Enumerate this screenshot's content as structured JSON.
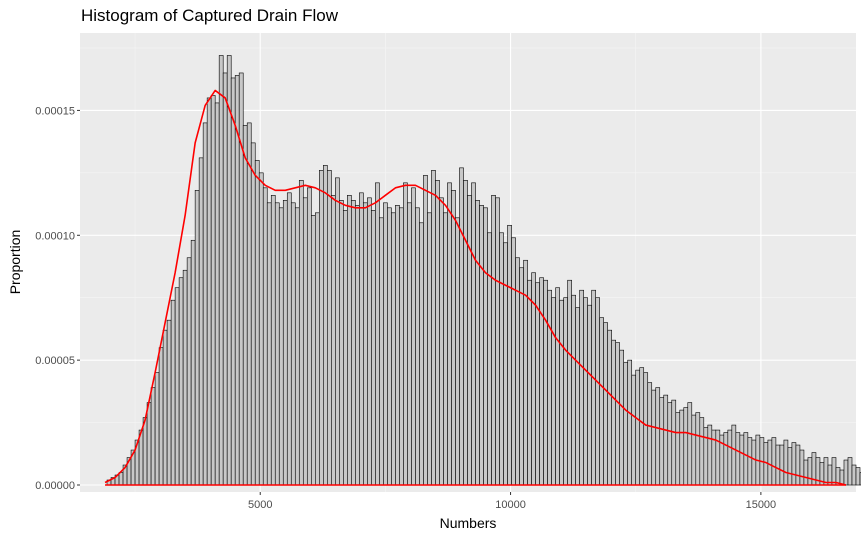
{
  "chart_data": {
    "type": "bar",
    "title": "Histogram of Captured Drain Flow",
    "xlabel": "Numbers",
    "ylabel": "Proportion",
    "xlim": [
      1400,
      16900
    ],
    "ylim": [
      -2.8e-06,
      0.000181
    ],
    "x_ticks": [
      5000,
      10000,
      15000
    ],
    "x_tick_labels": [
      "5000",
      "10000",
      "15000"
    ],
    "y_ticks": [
      0,
      5e-05,
      0.0001,
      0.00015
    ],
    "y_tick_labels": [
      "0.00000",
      "0.00005",
      "0.00010",
      "0.00015"
    ],
    "grid": true,
    "background": "#ebebeb",
    "bar_fill": "#c8c8c8",
    "bar_outline": "#000000",
    "density_color": "#ff0000",
    "bins": {
      "start": 1940,
      "width": 80,
      "values": [
        2e-06,
        3e-06,
        4e-06,
        5e-06,
        8e-06,
        1.1e-05,
        1.4e-05,
        1.8e-05,
        2.2e-05,
        2.7e-05,
        3.3e-05,
        3.9e-05,
        4.5e-05,
        5.5e-05,
        6.2e-05,
        6.6e-05,
        7.4e-05,
        7.9e-05,
        8.3e-05,
        8.6e-05,
        9.1e-05,
        9.8e-05,
        0.000118,
        0.000131,
        0.000145,
        0.000155,
        0.000156,
        0.000153,
        0.000172,
        0.000165,
        0.000172,
        0.000163,
        0.000164,
        0.000165,
        0.000144,
        0.000145,
        0.000137,
        0.00013,
        0.000125,
        0.000119,
        0.000113,
        0.000116,
        0.000113,
        0.000111,
        0.000114,
        0.000117,
        0.000113,
        0.000111,
        0.000122,
        0.000115,
        0.000119,
        0.000108,
        0.000109,
        0.000126,
        0.000128,
        0.000126,
        0.000116,
        0.000123,
        0.000114,
        0.00011,
        0.000116,
        0.000114,
        0.000112,
        0.000117,
        0.000113,
        0.000115,
        0.00011,
        0.000121,
        0.000107,
        0.000113,
        0.000111,
        0.000109,
        0.000112,
        0.000111,
        0.000121,
        0.000113,
        0.000119,
        0.000111,
        0.000105,
        0.000124,
        0.000109,
        0.000126,
        0.000122,
        0.000115,
        0.000109,
        0.000121,
        0.000118,
        0.000107,
        0.000127,
        0.000122,
        0.000116,
        0.000121,
        0.000114,
        0.000112,
        0.000111,
        0.000101,
        0.000116,
        0.000115,
        0.000101,
        9.7e-05,
        0.000104,
        9.9e-05,
        9.1e-05,
        8.7e-05,
        9e-05,
        8.2e-05,
        8.5e-05,
        8.1e-05,
        8.3e-05,
        8.2e-05,
        7.8e-05,
        7.5e-05,
        7.9e-05,
        7.4e-05,
        7.5e-05,
        8.2e-05,
        7.6e-05,
        7.1e-05,
        7.8e-05,
        7.5e-05,
        7.2e-05,
        7.8e-05,
        7.5e-05,
        6.7e-05,
        6.5e-05,
        6.2e-05,
        5.8e-05,
        5.7e-05,
        5.4e-05,
        4.9e-05,
        5e-05,
        4.4e-05,
        4.6e-05,
        4.7e-05,
        4.5e-05,
        4.1e-05,
        3.8e-05,
        3.9e-05,
        3.5e-05,
        3.6e-05,
        3.3e-05,
        3.4e-05,
        2.9e-05,
        3e-05,
        3.1e-05,
        3.3e-05,
        2.8e-05,
        2.9e-05,
        2.7e-05,
        2.3e-05,
        2.4e-05,
        2.2e-05,
        2.2e-05,
        2e-05,
        2.1e-05,
        2.2e-05,
        2.4e-05,
        2.1e-05,
        2e-05,
        2.1e-05,
        1.9e-05,
        1.8e-05,
        2e-05,
        1.9e-05,
        1.7e-05,
        1.8e-05,
        1.9e-05,
        1.6e-05,
        1.6e-05,
        1.8e-05,
        1.5e-05,
        1.7e-05,
        1.6e-05,
        1.4e-05,
        1e-05,
        1.1e-05,
        1.3e-05,
        1.1e-05,
        9e-06,
        1.1e-05,
        8e-06,
        1.1e-05,
        7e-06,
        6e-06,
        1e-05,
        1.1e-05,
        8e-06,
        7e-06,
        5e-06,
        4e-06,
        5e-06,
        3e-06,
        3e-06,
        2e-06,
        2e-06,
        1e-06,
        1e-06,
        1e-06
      ]
    },
    "density": {
      "x": [
        1900,
        2100,
        2300,
        2500,
        2700,
        2900,
        3100,
        3300,
        3500,
        3700,
        3900,
        4100,
        4300,
        4500,
        4700,
        4900,
        5100,
        5300,
        5500,
        5700,
        5900,
        6100,
        6300,
        6500,
        6700,
        6900,
        7100,
        7300,
        7500,
        7700,
        7900,
        8100,
        8300,
        8500,
        8700,
        8900,
        9100,
        9300,
        9500,
        9700,
        9900,
        10100,
        10300,
        10500,
        10700,
        10900,
        11100,
        11300,
        11500,
        11700,
        11900,
        12100,
        12300,
        12500,
        12700,
        12900,
        13100,
        13300,
        13500,
        13700,
        13900,
        14100,
        14300,
        14500,
        14700,
        14900,
        15100,
        15300,
        15500,
        15700,
        15900,
        16100,
        16300,
        16500,
        16700
      ],
      "y": [
        1e-06,
        3e-06,
        7e-06,
        1.4e-05,
        2.6e-05,
        4.5e-05,
        6.5e-05,
        8.5e-05,
        0.000108,
        0.000137,
        0.000152,
        0.000158,
        0.000155,
        0.000144,
        0.000131,
        0.000124,
        0.00012,
        0.000118,
        0.000118,
        0.000119,
        0.00012,
        0.000119,
        0.000117,
        0.000114,
        0.000112,
        0.000111,
        0.000111,
        0.000113,
        0.000116,
        0.000119,
        0.00012,
        0.00012,
        0.000118,
        0.000116,
        0.000112,
        0.000106,
        9.8e-05,
        9e-05,
        8.5e-05,
        8.2e-05,
        8e-05,
        7.8e-05,
        7.6e-05,
        7.2e-05,
        6.6e-05,
        5.9e-05,
        5.4e-05,
        5e-05,
        4.6e-05,
        4.2e-05,
        3.8e-05,
        3.4e-05,
        3e-05,
        2.7e-05,
        2.4e-05,
        2.3e-05,
        2.2e-05,
        2.1e-05,
        2.1e-05,
        2e-05,
        1.9e-05,
        1.8e-05,
        1.6e-05,
        1.4e-05,
        1.2e-05,
        1e-05,
        9e-06,
        7e-06,
        5e-06,
        4e-06,
        3e-06,
        2e-06,
        1e-06,
        1e-06,
        0.0
      ]
    }
  }
}
